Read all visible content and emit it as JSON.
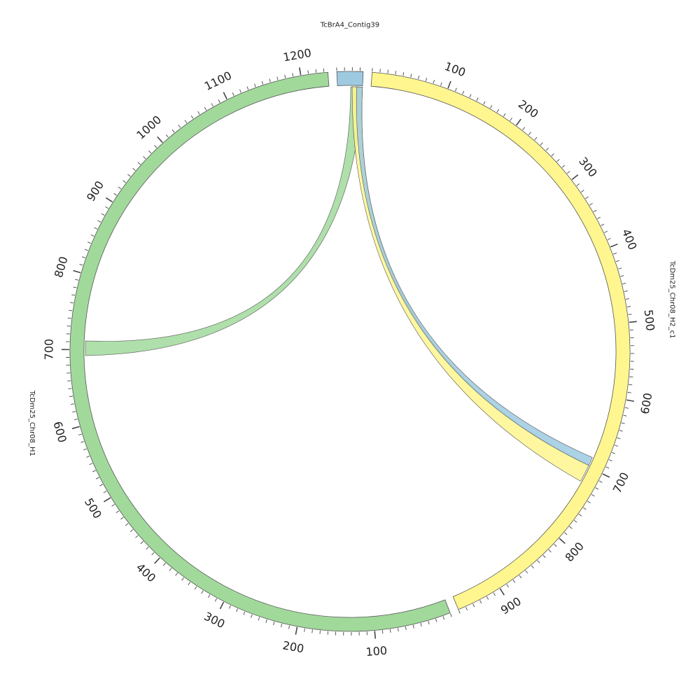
{
  "chart_data": {
    "type": "chord",
    "segments": [
      {
        "name": "TcBrA4_Contig39",
        "length": 34,
        "color": "#9ecae1",
        "major_ticks": []
      },
      {
        "name": "TcDm25_Chr08_H2_c1",
        "length": 960,
        "color": "#fff68f",
        "major_ticks": [
          100,
          200,
          300,
          400,
          500,
          600,
          700,
          800,
          900
        ]
      },
      {
        "name": "TcDm25_Chr08_H1",
        "length": 1235,
        "color": "#a1d99b",
        "major_ticks": [
          100,
          200,
          300,
          400,
          500,
          600,
          700,
          800,
          900,
          1000,
          1100,
          1200
        ]
      }
    ],
    "links": [
      {
        "from": {
          "segment": "TcBrA4_Contig39",
          "start": 18,
          "end": 34
        },
        "to": {
          "segment": "TcDm25_Chr08_H1",
          "start": 692,
          "end": 712
        },
        "color": "#a1d99b"
      },
      {
        "from": {
          "segment": "TcBrA4_Contig39",
          "start": 20,
          "end": 34
        },
        "to": {
          "segment": "TcDm25_Chr08_H2_c1",
          "start": 697,
          "end": 722
        },
        "color": "#fff68f"
      },
      {
        "from": {
          "segment": "TcBrA4_Contig39",
          "start": 26,
          "end": 34
        },
        "to": {
          "segment": "TcDm25_Chr08_H2_c1",
          "start": 686,
          "end": 698
        },
        "color": "#9ecae1"
      }
    ],
    "minor_tick_interval": 10,
    "outline_color": "#555555"
  }
}
